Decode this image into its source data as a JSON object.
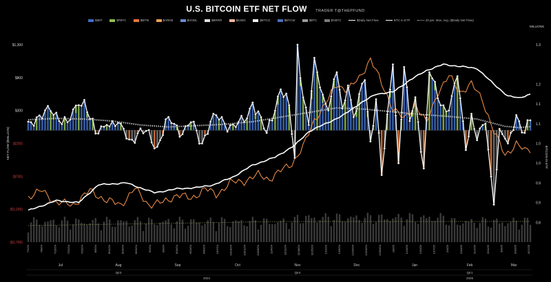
{
  "header": {
    "title": "U.S. BITCOIN ETF NET FLOW",
    "subtitle": "TRADER T@THEPFUND"
  },
  "colors": {
    "background": "#000000",
    "net_flow_line": "#ffffff",
    "btc_in_etf_line": "#ffffff",
    "avg_line": "#c8c8c8",
    "btc_price_line": "#e88a45",
    "volume_bars": "#3a3a3a"
  },
  "chart_data": {
    "type": "bar",
    "title": "U.S. BITCOIN ETF NET FLOW",
    "ylabel_left": "NET FLOW ($MILLION)",
    "ylabel_right": "BITCOIN IN ETF",
    "right_unit_label": "MILLIONS",
    "left_ticks": [
      "$1,300",
      "$800",
      "$300",
      "($200)",
      "($700)",
      "($1,200)",
      "($1,700)"
    ],
    "left_tick_values": [
      1300,
      800,
      300,
      -200,
      -700,
      -1200,
      -1700
    ],
    "right_ticks": [
      "1.3",
      "1.2",
      "1.1",
      "1.1",
      "1.0",
      "1.0",
      "0.9",
      "0.9",
      "0.8"
    ],
    "right_tick_values": [
      1.3,
      1.2,
      1.15,
      1.1,
      1.05,
      1.0,
      0.95,
      0.9,
      0.85
    ],
    "ylim_left": [
      -1700,
      1300
    ],
    "ylim_right": [
      0.8,
      1.3
    ],
    "grid": false,
    "legend_position": "top",
    "legend": [
      {
        "name": "$IBIT",
        "color": "#3f6fc6",
        "kind": "bar"
      },
      {
        "name": "$FBTC",
        "color": "#8fbf4f",
        "kind": "bar"
      },
      {
        "name": "$BITB",
        "color": "#e87a3a",
        "kind": "bar"
      },
      {
        "name": "$ARKB",
        "color": "#f0a050",
        "kind": "bar"
      },
      {
        "name": "$HODL",
        "color": "#6a8ad0",
        "kind": "bar"
      },
      {
        "name": "$BRRR",
        "color": "#e0e0e0",
        "kind": "bar"
      },
      {
        "name": "$EZBC",
        "color": "#f4b6a0",
        "kind": "bar"
      },
      {
        "name": "$BTCO",
        "color": "#f5f5f5",
        "kind": "bar"
      },
      {
        "name": "$BTCW",
        "color": "#4a6fb8",
        "kind": "bar"
      },
      {
        "name": "$BTC",
        "color": "#9a9a9a",
        "kind": "bar"
      },
      {
        "name": "$GBTC",
        "color": "#7a7a7a",
        "kind": "bar"
      },
      {
        "name": "$Daily Net Flow",
        "color": "#ffffff",
        "kind": "line-dot"
      },
      {
        "name": "BTC in ETF",
        "color": "#ffffff",
        "kind": "line"
      },
      {
        "name": "20 per. Mov. Avg. ($Daily Net Flow)",
        "color": "#c8c8c8",
        "kind": "dotted"
      }
    ],
    "date_labels": [
      "7/1/24",
      "7/8/24",
      "7/15/24",
      "7/22/24",
      "7/29/24",
      "8/5/24",
      "8/12/24",
      "8/19/24",
      "8/26/24",
      "9/2/24",
      "9/9/24",
      "9/16/24",
      "9/23/24",
      "9/30/24",
      "10/7/24",
      "10/14/24",
      "10/21/24",
      "10/28/24",
      "11/4/24",
      "11/11/24",
      "11/18/24",
      "11/25/24",
      "12/2/24",
      "12/9/24",
      "12/16/24",
      "12/23/24",
      "12/30/24",
      "1/6/25",
      "1/13/25",
      "1/20/25",
      "1/27/25",
      "2/3/25",
      "2/10/25",
      "2/17/25",
      "2/24/25",
      "3/3/25",
      "3/10/25",
      "3/17/25"
    ],
    "months": [
      "Jul",
      "Aug",
      "Sep",
      "Oct",
      "Nov",
      "Dec",
      "Jan",
      "Feb",
      "Mar"
    ],
    "quarters": [
      "Qtr3",
      "Qtr4",
      "Qtr1"
    ],
    "years": [
      "2024",
      "2025"
    ],
    "x_count": 180,
    "daily_net_flow_key": [
      {
        "x": 0,
        "y": 130
      },
      {
        "x": 8,
        "y": 290
      },
      {
        "x": 14,
        "y": 120
      },
      {
        "x": 18,
        "y": 380
      },
      {
        "x": 20,
        "y": 460
      },
      {
        "x": 24,
        "y": -50
      },
      {
        "x": 28,
        "y": 80
      },
      {
        "x": 33,
        "y": 100
      },
      {
        "x": 36,
        "y": -140
      },
      {
        "x": 42,
        "y": -10
      },
      {
        "x": 46,
        "y": -250
      },
      {
        "x": 50,
        "y": 200
      },
      {
        "x": 55,
        "y": -60
      },
      {
        "x": 58,
        "y": 120
      },
      {
        "x": 62,
        "y": -200
      },
      {
        "x": 66,
        "y": 250
      },
      {
        "x": 70,
        "y": 100
      },
      {
        "x": 74,
        "y": 50
      },
      {
        "x": 78,
        "y": 180
      },
      {
        "x": 80,
        "y": 420
      },
      {
        "x": 85,
        "y": -40
      },
      {
        "x": 90,
        "y": 620
      },
      {
        "x": 93,
        "y": 380
      },
      {
        "x": 95,
        "y": -420
      },
      {
        "x": 96,
        "y": 1300
      },
      {
        "x": 98,
        "y": 500
      },
      {
        "x": 100,
        "y": 80
      },
      {
        "x": 102,
        "y": 1100
      },
      {
        "x": 104,
        "y": 650
      },
      {
        "x": 107,
        "y": 300
      },
      {
        "x": 110,
        "y": 880
      },
      {
        "x": 112,
        "y": 330
      },
      {
        "x": 114,
        "y": 680
      },
      {
        "x": 116,
        "y": 200
      },
      {
        "x": 120,
        "y": 760
      },
      {
        "x": 122,
        "y": -170
      },
      {
        "x": 124,
        "y": 470
      },
      {
        "x": 126,
        "y": -680
      },
      {
        "x": 130,
        "y": 1000
      },
      {
        "x": 132,
        "y": -500
      },
      {
        "x": 134,
        "y": 960
      },
      {
        "x": 136,
        "y": 140
      },
      {
        "x": 138,
        "y": 500
      },
      {
        "x": 141,
        "y": -580
      },
      {
        "x": 143,
        "y": 880
      },
      {
        "x": 147,
        "y": 380
      },
      {
        "x": 150,
        "y": 300
      },
      {
        "x": 153,
        "y": 820
      },
      {
        "x": 156,
        "y": -300
      },
      {
        "x": 158,
        "y": 250
      },
      {
        "x": 160,
        "y": -150
      },
      {
        "x": 163,
        "y": 100
      },
      {
        "x": 166,
        "y": -1130
      },
      {
        "x": 168,
        "y": 20
      },
      {
        "x": 171,
        "y": -200
      },
      {
        "x": 174,
        "y": 230
      },
      {
        "x": 177,
        "y": -40
      },
      {
        "x": 179,
        "y": 150
      }
    ],
    "btc_in_etf_key": [
      {
        "x": 0,
        "y": 0.88
      },
      {
        "x": 10,
        "y": 0.905
      },
      {
        "x": 18,
        "y": 0.9
      },
      {
        "x": 25,
        "y": 0.945
      },
      {
        "x": 35,
        "y": 0.95
      },
      {
        "x": 45,
        "y": 0.925
      },
      {
        "x": 53,
        "y": 0.935
      },
      {
        "x": 60,
        "y": 0.938
      },
      {
        "x": 66,
        "y": 0.945
      },
      {
        "x": 73,
        "y": 0.965
      },
      {
        "x": 80,
        "y": 0.995
      },
      {
        "x": 88,
        "y": 1.015
      },
      {
        "x": 95,
        "y": 1.045
      },
      {
        "x": 100,
        "y": 1.08
      },
      {
        "x": 106,
        "y": 1.1
      },
      {
        "x": 112,
        "y": 1.12
      },
      {
        "x": 118,
        "y": 1.15
      },
      {
        "x": 124,
        "y": 1.175
      },
      {
        "x": 130,
        "y": 1.18
      },
      {
        "x": 136,
        "y": 1.21
      },
      {
        "x": 142,
        "y": 1.235
      },
      {
        "x": 148,
        "y": 1.25
      },
      {
        "x": 154,
        "y": 1.245
      },
      {
        "x": 160,
        "y": 1.24
      },
      {
        "x": 166,
        "y": 1.2
      },
      {
        "x": 171,
        "y": 1.17
      },
      {
        "x": 175,
        "y": 1.165
      },
      {
        "x": 179,
        "y": 1.175
      }
    ],
    "btc_price_key": [
      {
        "x": 0,
        "y": 0.915
      },
      {
        "x": 5,
        "y": 0.93
      },
      {
        "x": 10,
        "y": 0.9
      },
      {
        "x": 16,
        "y": 0.895
      },
      {
        "x": 22,
        "y": 0.93
      },
      {
        "x": 28,
        "y": 0.905
      },
      {
        "x": 33,
        "y": 0.895
      },
      {
        "x": 38,
        "y": 0.935
      },
      {
        "x": 43,
        "y": 0.895
      },
      {
        "x": 48,
        "y": 0.9
      },
      {
        "x": 53,
        "y": 0.92
      },
      {
        "x": 58,
        "y": 0.91
      },
      {
        "x": 63,
        "y": 0.935
      },
      {
        "x": 67,
        "y": 0.92
      },
      {
        "x": 72,
        "y": 0.95
      },
      {
        "x": 77,
        "y": 0.955
      },
      {
        "x": 82,
        "y": 0.97
      },
      {
        "x": 86,
        "y": 0.96
      },
      {
        "x": 90,
        "y": 0.98
      },
      {
        "x": 94,
        "y": 1.0
      },
      {
        "x": 98,
        "y": 1.04
      },
      {
        "x": 102,
        "y": 1.11
      },
      {
        "x": 106,
        "y": 1.15
      },
      {
        "x": 110,
        "y": 1.2
      },
      {
        "x": 114,
        "y": 1.185
      },
      {
        "x": 118,
        "y": 1.215
      },
      {
        "x": 122,
        "y": 1.265
      },
      {
        "x": 126,
        "y": 1.2
      },
      {
        "x": 130,
        "y": 1.14
      },
      {
        "x": 134,
        "y": 1.11
      },
      {
        "x": 138,
        "y": 1.15
      },
      {
        "x": 142,
        "y": 1.1
      },
      {
        "x": 146,
        "y": 1.18
      },
      {
        "x": 150,
        "y": 1.22
      },
      {
        "x": 154,
        "y": 1.18
      },
      {
        "x": 158,
        "y": 1.2
      },
      {
        "x": 162,
        "y": 1.16
      },
      {
        "x": 166,
        "y": 1.08
      },
      {
        "x": 170,
        "y": 1.02
      },
      {
        "x": 174,
        "y": 1.05
      },
      {
        "x": 177,
        "y": 1.03
      },
      {
        "x": 179,
        "y": 1.035
      }
    ],
    "avg_key": [
      {
        "x": 0,
        "y": 160
      },
      {
        "x": 10,
        "y": 180
      },
      {
        "x": 20,
        "y": 170
      },
      {
        "x": 30,
        "y": 140
      },
      {
        "x": 40,
        "y": 80
      },
      {
        "x": 50,
        "y": 50
      },
      {
        "x": 60,
        "y": 70
      },
      {
        "x": 70,
        "y": 90
      },
      {
        "x": 80,
        "y": 130
      },
      {
        "x": 90,
        "y": 200
      },
      {
        "x": 100,
        "y": 270
      },
      {
        "x": 110,
        "y": 340
      },
      {
        "x": 120,
        "y": 320
      },
      {
        "x": 130,
        "y": 280
      },
      {
        "x": 140,
        "y": 240
      },
      {
        "x": 150,
        "y": 210
      },
      {
        "x": 160,
        "y": 170
      },
      {
        "x": 170,
        "y": 60
      },
      {
        "x": 175,
        "y": 40
      },
      {
        "x": 179,
        "y": 55
      }
    ]
  }
}
